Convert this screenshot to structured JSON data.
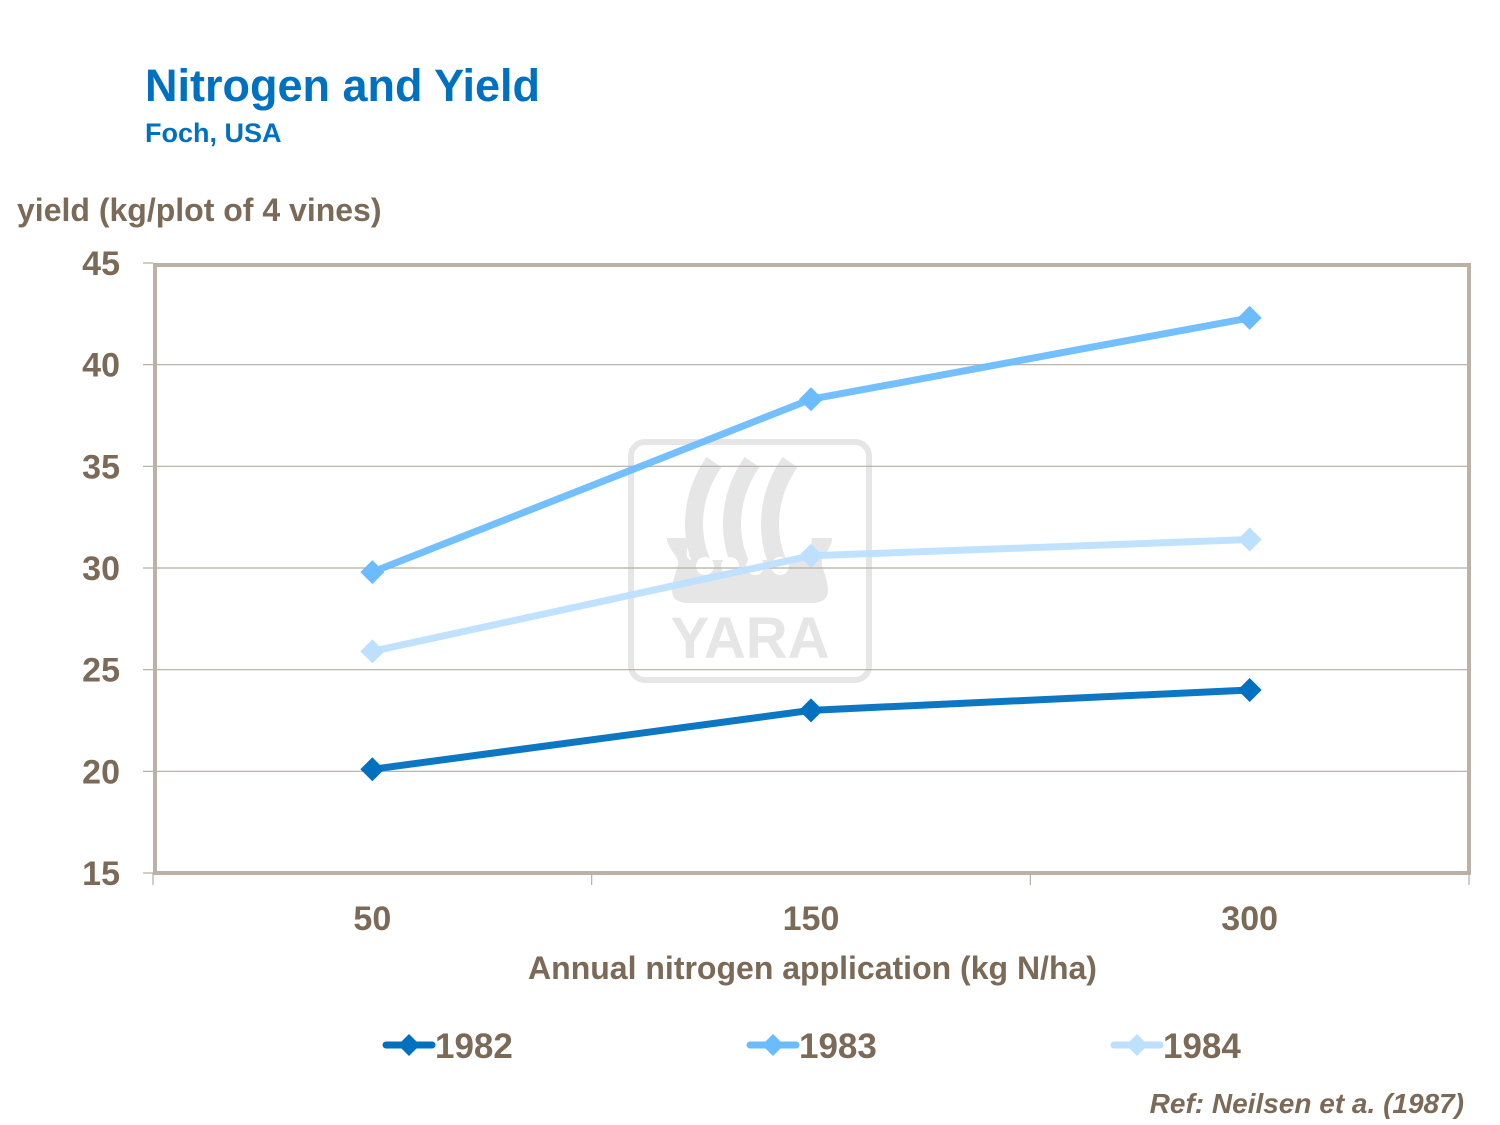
{
  "header": {
    "title": "Nitrogen and Yield",
    "subtitle": "Foch, USA"
  },
  "watermark": {
    "text": "YARA",
    "icon": "yara-viking-ship-logo-icon"
  },
  "reference": "Ref: Neilsen et a. (1987)",
  "colors": {
    "title": "#0070c0",
    "axis_text": "#7b6a58",
    "gridline": "#b5aca3",
    "frame": "#bcb1a7",
    "series_1982": "#0070c0",
    "series_1983": "#6bbcff",
    "series_1984": "#bde0ff",
    "watermark": "#e6e6e6"
  },
  "chart_data": {
    "type": "line",
    "title": "Nitrogen and Yield",
    "subtitle": "Foch, USA",
    "xlabel": "Annual nitrogen application (kg N/ha)",
    "ylabel": "yield (kg/plot of 4 vines)",
    "categories": [
      "50",
      "150",
      "300"
    ],
    "ylim": [
      15,
      45
    ],
    "yticks": [
      15,
      20,
      25,
      30,
      35,
      40,
      45
    ],
    "ytick_labels": [
      "15",
      "20",
      "25",
      "30",
      "35",
      "40",
      "45"
    ],
    "grid": true,
    "marker": "diamond",
    "legend_position": "bottom",
    "series": [
      {
        "name": "1982",
        "color": "#0070c0",
        "values": [
          20.1,
          23.0,
          24.0
        ]
      },
      {
        "name": "1983",
        "color": "#6bbcff",
        "values": [
          29.8,
          38.3,
          42.3
        ]
      },
      {
        "name": "1984",
        "color": "#bde0ff",
        "values": [
          25.9,
          30.6,
          31.4
        ]
      }
    ],
    "annotation": "Ref: Neilsen et a. (1987)"
  }
}
